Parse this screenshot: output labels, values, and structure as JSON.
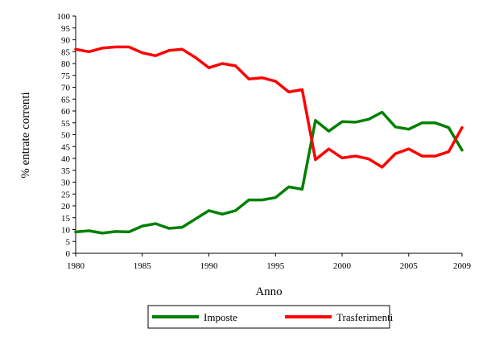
{
  "chart_data": {
    "type": "line",
    "title": "",
    "xlabel": "Anno",
    "ylabel": "% entrate correnti",
    "xlim": [
      1980,
      2009
    ],
    "ylim": [
      0,
      100
    ],
    "xticks": [
      1980,
      1985,
      1990,
      1995,
      2000,
      2005,
      2009
    ],
    "yticks": [
      0,
      5,
      10,
      15,
      20,
      25,
      30,
      35,
      40,
      45,
      50,
      55,
      60,
      65,
      70,
      75,
      80,
      85,
      90,
      95,
      100
    ],
    "grid": false,
    "legend_position": "bottom",
    "x": [
      1980,
      1981,
      1982,
      1983,
      1984,
      1985,
      1986,
      1987,
      1988,
      1989,
      1990,
      1991,
      1992,
      1993,
      1994,
      1995,
      1996,
      1997,
      1998,
      1999,
      2000,
      2001,
      2002,
      2003,
      2004,
      2005,
      2006,
      2007,
      2008,
      2009
    ],
    "series": [
      {
        "name": "Imposte",
        "color": "#008000",
        "values": [
          9,
          9.5,
          8.5,
          9.2,
          9,
          11.5,
          12.5,
          10.5,
          11,
          14.5,
          18,
          16.5,
          18,
          22.5,
          22.5,
          23.5,
          28,
          27,
          56,
          51.5,
          55.5,
          55.3,
          56.5,
          59.5,
          53.3,
          52.3,
          55,
          55,
          53,
          43.5
        ]
      },
      {
        "name": "Trasferimenti",
        "color": "#ff0000",
        "values": [
          86,
          85,
          86.5,
          87,
          87,
          84.5,
          83.3,
          85.5,
          86,
          82.5,
          78.2,
          80,
          79,
          73.5,
          74,
          72.5,
          68,
          69,
          39.5,
          44,
          40.2,
          41,
          39.8,
          36.3,
          42,
          44,
          41,
          41,
          42.8,
          53
        ]
      }
    ]
  }
}
